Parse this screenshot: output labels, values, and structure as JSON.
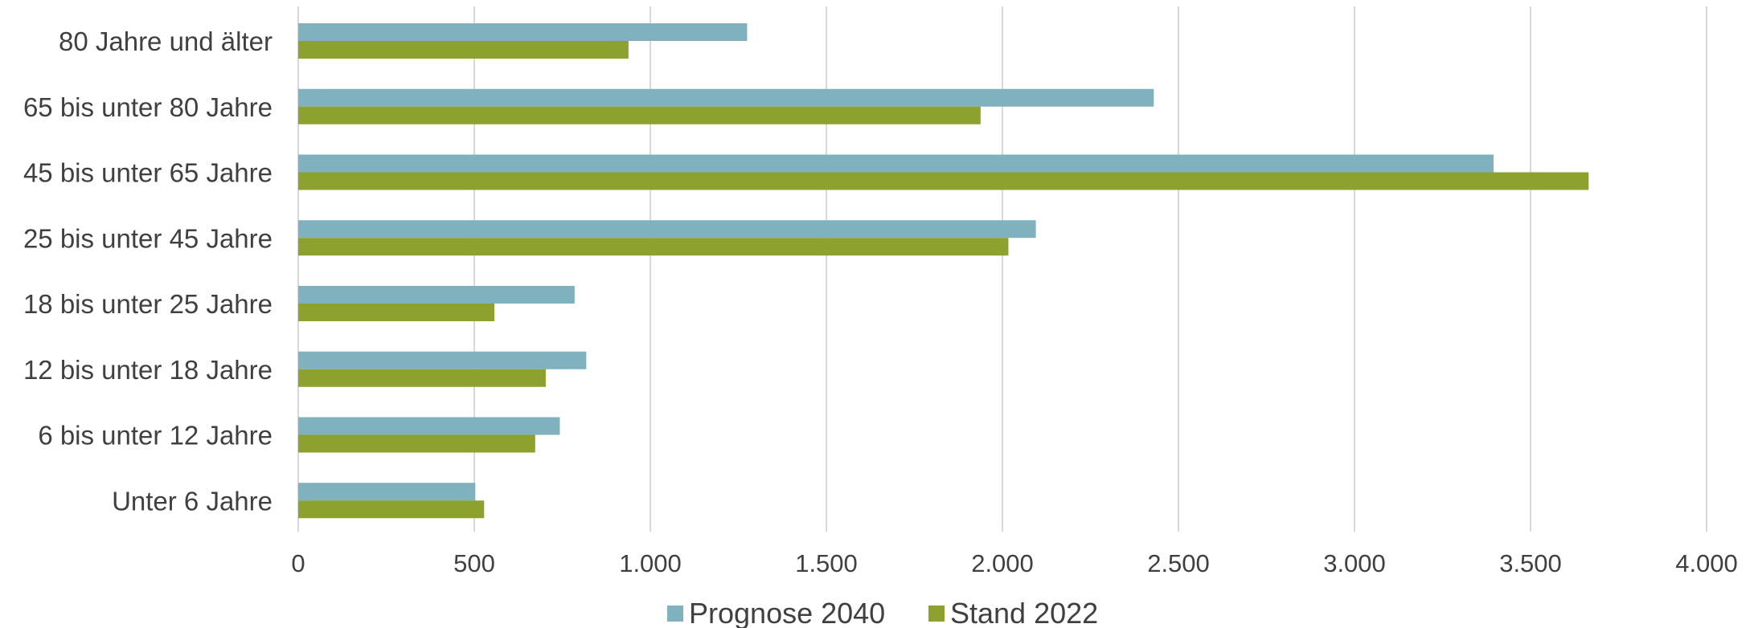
{
  "chart_data": {
    "type": "bar",
    "orientation": "horizontal",
    "title": "",
    "xlabel": "",
    "ylabel": "",
    "categories": [
      "80 Jahre und älter",
      "65 bis unter 80 Jahre",
      "45 bis unter 65 Jahre",
      "25 bis unter 45 Jahre",
      "18 bis unter 25 Jahre",
      "12 bis unter 18 Jahre",
      "6 bis unter 12 Jahre",
      "Unter 6 Jahre"
    ],
    "series": [
      {
        "name": "Prognose 2040",
        "color": "#7fb1be",
        "values": [
          1275,
          2430,
          3395,
          2095,
          785,
          818,
          743,
          503
        ]
      },
      {
        "name": "Stand 2022",
        "color": "#8da22e",
        "values": [
          938,
          1938,
          3665,
          2017,
          557,
          703,
          673,
          528
        ]
      }
    ],
    "xlim": [
      0,
      4000
    ],
    "ticks": [
      0,
      500,
      1000,
      1500,
      2000,
      2500,
      3000,
      3500,
      4000
    ],
    "tick_labels": [
      "0",
      "500",
      "1.000",
      "1.500",
      "2.000",
      "2.500",
      "3.000",
      "3.500",
      "4.000"
    ],
    "grid": true,
    "legend_position": "bottom"
  }
}
